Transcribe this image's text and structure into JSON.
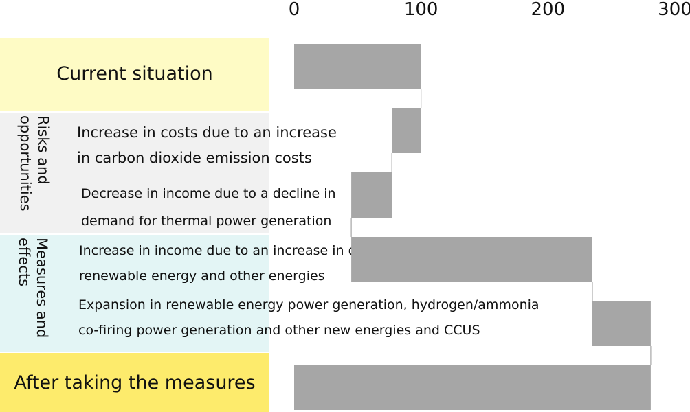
{
  "colors": {
    "current_bg": "#fefbc5",
    "risks_bg": "#f1f1f1",
    "measures_bg": "#e3f5f5",
    "after_bg": "#fdeb6c",
    "bar": "#a6a6a6",
    "connector": "#a6a6a6"
  },
  "sections": {
    "current": "Current situation",
    "risks": "Risks and\nopportunities",
    "measures": "Measures and\neffects",
    "after": "After taking the measures"
  },
  "items": [
    "Increase in costs due to an increase\nin carbon dioxide emission costs",
    "Decrease in income due to a decline in\ndemand for thermal power generation",
    "Increase in income due to an increase in demand for\nrenewable energy and other energies",
    "Expansion in renewable energy power generation, hydrogen/ammonia\nco-firing power generation and other new energies and CCUS"
  ],
  "chart_data": {
    "type": "bar",
    "orientation": "horizontal",
    "xlim": [
      0,
      300
    ],
    "x_ticks": [
      0,
      100,
      200,
      300
    ],
    "categories": [
      "Current situation",
      "Increase in costs due to an increase in carbon dioxide emission costs",
      "Decrease in income due to a decline in demand for thermal power generation",
      "Increase in income due to an increase in demand for renewable energy and other energies",
      "Expansion in renewable energy power generation, hydrogen/ammonia co-firing power generation and other new energies and CCUS",
      "After taking the measures"
    ],
    "bars": [
      {
        "start": 0,
        "end": 100
      },
      {
        "start": 77,
        "end": 100
      },
      {
        "start": 45,
        "end": 77
      },
      {
        "start": 45,
        "end": 235
      },
      {
        "start": 235,
        "end": 281
      },
      {
        "start": 0,
        "end": 281
      }
    ]
  }
}
